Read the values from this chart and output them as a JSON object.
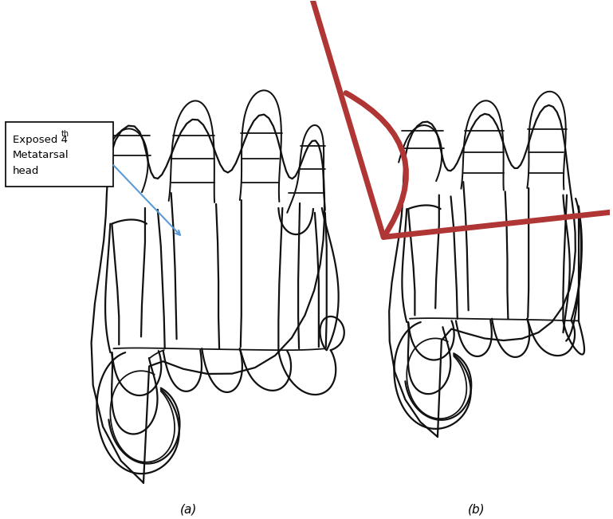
{
  "label_a": "(a)",
  "label_b": "(b)",
  "annotation_line1": "Exposed 4",
  "annotation_sup": "th",
  "annotation_line2": "Metatarsal",
  "annotation_line3": "head",
  "blue_arrow_color": "#5b9bd5",
  "red_arrow_color": "#b03535",
  "line_color": "#111111",
  "line_width": 1.6,
  "bg_color": "#ffffff",
  "fig_width": 7.69,
  "fig_height": 6.51,
  "dpi": 100
}
